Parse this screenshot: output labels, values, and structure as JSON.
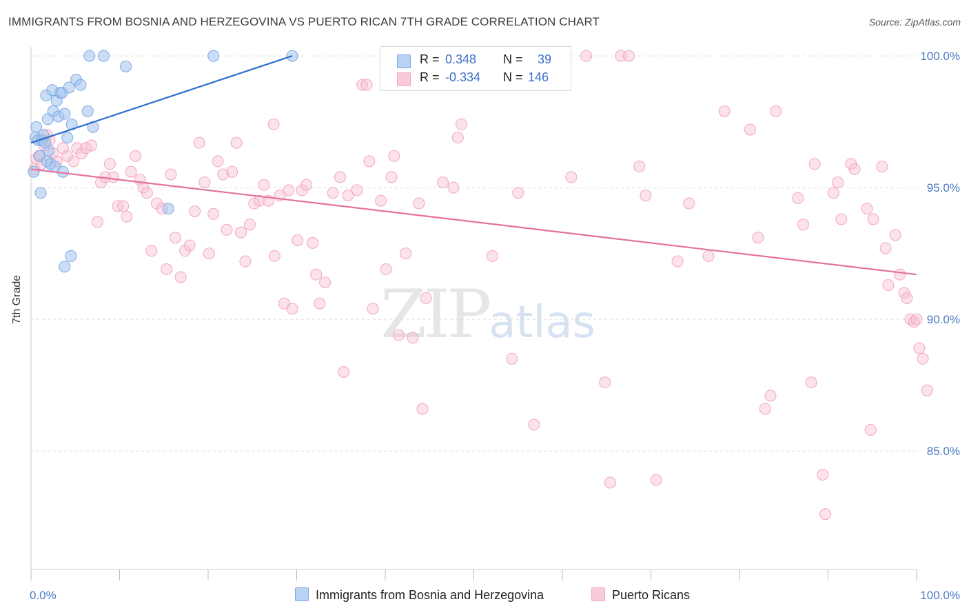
{
  "title": "IMMIGRANTS FROM BOSNIA AND HERZEGOVINA VS PUERTO RICAN 7TH GRADE CORRELATION CHART",
  "source": "Source: ZipAtlas.com",
  "legend_top": {
    "row1": {
      "r_label": "R =",
      "r_value": "0.348",
      "n_label": "N =",
      "n_value": "39"
    },
    "row2": {
      "r_label": "R =",
      "r_value": "-0.334",
      "n_label": "N =",
      "n_value": "146"
    }
  },
  "colors": {
    "blue": "#7fa9e3",
    "blue_line": "#2f6fcc",
    "pink": "#f2a6c0",
    "pink_line": "#e5719c",
    "tick": "#4a78c2"
  },
  "chart_data": {
    "type": "scatter",
    "title": "IMMIGRANTS FROM BOSNIA AND HERZEGOVINA VS PUERTO RICAN 7TH GRADE CORRELATION CHART",
    "xlabel": "",
    "ylabel": "7th Grade",
    "xlim": [
      0,
      100
    ],
    "ylim": [
      80.5,
      100.5
    ],
    "y_ticks": [
      "100.0%",
      "95.0%",
      "90.0%",
      "85.0%"
    ],
    "y_tick_values": [
      100,
      95,
      90,
      85
    ],
    "x_tick_labels": [
      "0.0%",
      "100.0%"
    ],
    "legend_position": "top-center",
    "series": [
      {
        "name": "Immigrants from Bosnia and Herzegovina",
        "color": "#7fa9e3",
        "trend": {
          "x": [
            0,
            29.5
          ],
          "y": [
            96.7,
            100.0
          ]
        },
        "points": [
          [
            0.3,
            95.6
          ],
          [
            0.5,
            96.9
          ],
          [
            0.6,
            97.3
          ],
          [
            0.8,
            96.8
          ],
          [
            1.0,
            96.2
          ],
          [
            1.1,
            94.8
          ],
          [
            1.2,
            96.8
          ],
          [
            1.4,
            97.0
          ],
          [
            1.6,
            96.7
          ],
          [
            1.7,
            98.5
          ],
          [
            1.8,
            96.0
          ],
          [
            1.9,
            97.6
          ],
          [
            2.0,
            96.4
          ],
          [
            2.2,
            95.9
          ],
          [
            2.4,
            98.7
          ],
          [
            2.5,
            97.9
          ],
          [
            2.7,
            95.8
          ],
          [
            2.9,
            98.3
          ],
          [
            3.1,
            97.7
          ],
          [
            3.3,
            98.6
          ],
          [
            3.5,
            98.6
          ],
          [
            3.6,
            95.6
          ],
          [
            3.8,
            97.8
          ],
          [
            3.8,
            92.0
          ],
          [
            4.1,
            96.9
          ],
          [
            4.3,
            98.8
          ],
          [
            4.5,
            92.4
          ],
          [
            4.6,
            97.4
          ],
          [
            5.1,
            99.1
          ],
          [
            5.6,
            98.9
          ],
          [
            6.4,
            97.9
          ],
          [
            7.0,
            97.3
          ],
          [
            6.6,
            100.0
          ],
          [
            8.2,
            100.0
          ],
          [
            10.7,
            99.6
          ],
          [
            15.5,
            94.2
          ],
          [
            20.6,
            100.0
          ],
          [
            29.5,
            100.0
          ]
        ]
      },
      {
        "name": "Puerto Ricans",
        "color": "#f2a6c0",
        "trend": {
          "x": [
            0,
            100
          ],
          "y": [
            95.7,
            91.7
          ]
        },
        "points": [
          [
            0.4,
            95.7
          ],
          [
            0.6,
            96.1
          ],
          [
            0.9,
            96.2
          ],
          [
            1.2,
            95.9
          ],
          [
            1.5,
            96.6
          ],
          [
            1.8,
            97.0
          ],
          [
            2.1,
            96.8
          ],
          [
            2.5,
            96.3
          ],
          [
            2.9,
            96.0
          ],
          [
            3.6,
            96.5
          ],
          [
            4.1,
            96.2
          ],
          [
            4.8,
            96.0
          ],
          [
            5.2,
            96.5
          ],
          [
            5.7,
            96.3
          ],
          [
            6.2,
            96.5
          ],
          [
            6.8,
            96.6
          ],
          [
            7.5,
            93.7
          ],
          [
            7.9,
            95.2
          ],
          [
            8.4,
            95.4
          ],
          [
            8.9,
            95.9
          ],
          [
            9.3,
            95.4
          ],
          [
            9.8,
            94.3
          ],
          [
            10.4,
            94.3
          ],
          [
            10.8,
            93.9
          ],
          [
            11.3,
            95.6
          ],
          [
            11.8,
            96.2
          ],
          [
            12.3,
            95.3
          ],
          [
            12.7,
            95.0
          ],
          [
            13.1,
            94.8
          ],
          [
            13.6,
            92.6
          ],
          [
            14.2,
            94.4
          ],
          [
            14.8,
            94.2
          ],
          [
            15.3,
            91.9
          ],
          [
            15.8,
            95.5
          ],
          [
            16.3,
            93.1
          ],
          [
            16.9,
            91.6
          ],
          [
            17.4,
            92.6
          ],
          [
            17.9,
            92.8
          ],
          [
            18.5,
            94.1
          ],
          [
            19.0,
            96.7
          ],
          [
            19.6,
            95.2
          ],
          [
            20.1,
            92.5
          ],
          [
            20.6,
            94.0
          ],
          [
            21.1,
            96.0
          ],
          [
            21.7,
            95.5
          ],
          [
            22.1,
            93.4
          ],
          [
            22.7,
            95.6
          ],
          [
            23.2,
            96.7
          ],
          [
            23.7,
            93.3
          ],
          [
            24.2,
            92.2
          ],
          [
            24.7,
            93.6
          ],
          [
            25.2,
            94.4
          ],
          [
            25.8,
            94.5
          ],
          [
            26.3,
            95.1
          ],
          [
            26.8,
            94.5
          ],
          [
            27.4,
            97.4
          ],
          [
            27.5,
            92.4
          ],
          [
            28.1,
            94.7
          ],
          [
            28.6,
            90.6
          ],
          [
            29.1,
            94.9
          ],
          [
            29.5,
            90.4
          ],
          [
            30.1,
            93.0
          ],
          [
            30.6,
            94.9
          ],
          [
            31.1,
            95.1
          ],
          [
            31.8,
            92.9
          ],
          [
            32.2,
            91.7
          ],
          [
            32.6,
            90.6
          ],
          [
            33.2,
            91.4
          ],
          [
            34.1,
            94.8
          ],
          [
            34.9,
            95.4
          ],
          [
            35.3,
            88.0
          ],
          [
            35.8,
            94.7
          ],
          [
            36.8,
            94.9
          ],
          [
            37.4,
            98.9
          ],
          [
            38.2,
            96.0
          ],
          [
            38.6,
            90.4
          ],
          [
            39.5,
            94.5
          ],
          [
            40.1,
            91.9
          ],
          [
            40.7,
            95.4
          ],
          [
            41.0,
            96.2
          ],
          [
            41.5,
            89.4
          ],
          [
            42.3,
            92.5
          ],
          [
            43.1,
            89.3
          ],
          [
            43.8,
            94.4
          ],
          [
            44.2,
            86.6
          ],
          [
            44.6,
            90.8
          ],
          [
            46.5,
            95.2
          ],
          [
            47.7,
            95.0
          ],
          [
            48.2,
            96.9
          ],
          [
            48.6,
            97.4
          ],
          [
            52.1,
            92.4
          ],
          [
            54.3,
            88.5
          ],
          [
            55.0,
            94.8
          ],
          [
            56.8,
            86.0
          ],
          [
            57.2,
            100.0
          ],
          [
            61.0,
            95.4
          ],
          [
            62.7,
            100.0
          ],
          [
            64.8,
            87.6
          ],
          [
            65.4,
            83.8
          ],
          [
            66.6,
            100.0
          ],
          [
            67.5,
            100.0
          ],
          [
            68.7,
            95.8
          ],
          [
            69.4,
            94.7
          ],
          [
            70.6,
            83.9
          ],
          [
            73.0,
            92.2
          ],
          [
            74.3,
            94.4
          ],
          [
            76.5,
            92.4
          ],
          [
            78.3,
            97.9
          ],
          [
            81.2,
            97.2
          ],
          [
            82.1,
            93.1
          ],
          [
            82.9,
            86.6
          ],
          [
            83.5,
            87.1
          ],
          [
            84.1,
            97.9
          ],
          [
            86.6,
            94.6
          ],
          [
            87.2,
            93.6
          ],
          [
            88.1,
            87.6
          ],
          [
            88.5,
            95.9
          ],
          [
            89.4,
            84.1
          ],
          [
            89.7,
            82.6
          ],
          [
            90.6,
            94.8
          ],
          [
            91.1,
            95.2
          ],
          [
            91.5,
            93.8
          ],
          [
            92.6,
            95.9
          ],
          [
            93.0,
            95.7
          ],
          [
            94.4,
            94.2
          ],
          [
            94.8,
            85.8
          ],
          [
            95.1,
            93.8
          ],
          [
            96.1,
            95.8
          ],
          [
            96.5,
            92.7
          ],
          [
            96.8,
            91.3
          ],
          [
            97.6,
            93.2
          ],
          [
            98.1,
            91.7
          ],
          [
            98.6,
            91.0
          ],
          [
            98.9,
            90.8
          ],
          [
            99.3,
            90.0
          ],
          [
            99.7,
            89.9
          ],
          [
            100.0,
            90.0
          ],
          [
            100.3,
            88.9
          ],
          [
            100.7,
            88.5
          ],
          [
            101.2,
            87.3
          ],
          [
            37.9,
            98.9
          ],
          [
            48.8,
            100.0
          ],
          [
            59.0,
            100.0
          ]
        ]
      }
    ]
  },
  "bottom_legend": {
    "item1": "Immigrants from Bosnia and Herzegovina",
    "item2": "Puerto Ricans"
  },
  "watermark": {
    "zip": "ZIP",
    "atlas": "atlas"
  }
}
